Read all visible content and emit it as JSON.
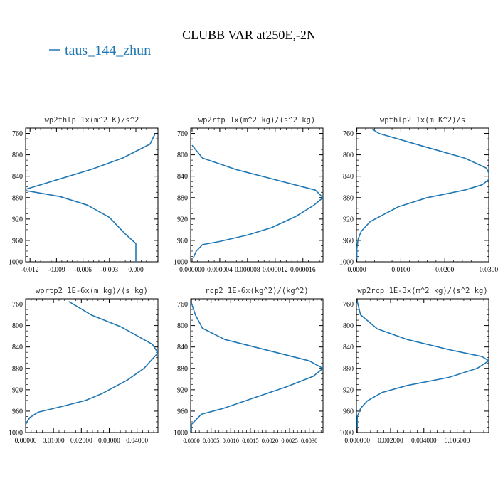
{
  "figure": {
    "title": "CLUBB VAR at250E,-2N",
    "legend": [
      {
        "label": "taus_144_zhun",
        "color": "#1f77b4"
      }
    ]
  },
  "chart_data": [
    {
      "type": "line",
      "title": "wp2thlp  1x(m^2 K)/s^2",
      "series_name": "taus_144_zhun",
      "xlim": [
        -0.0125,
        0.0025
      ],
      "ylim": [
        1000,
        750
      ],
      "xticks": [
        -0.012,
        -0.009,
        -0.006,
        -0.003,
        0.0
      ],
      "xtick_labels": [
        "-0.012",
        "-0.009",
        "-0.006",
        "-0.003",
        "0.000"
      ],
      "yticks": [
        760,
        800,
        840,
        880,
        920,
        960,
        1000
      ],
      "ytick_labels": [
        "760",
        "800",
        "840",
        "880",
        "920",
        "960",
        "1000"
      ],
      "x": [
        0.0022,
        0.0016,
        -0.0015,
        -0.005,
        -0.0088,
        -0.0128,
        -0.0086,
        -0.0055,
        -0.003,
        -0.0012,
        0.0,
        0.0,
        0.0
      ],
      "y": [
        760,
        780,
        806,
        827,
        846,
        866,
        878,
        894,
        917,
        948,
        966,
        985,
        1000
      ]
    },
    {
      "type": "line",
      "title": "wp2rtp  1x(m^2 kg)/(s^2 kg)",
      "series_name": "taus_144_zhun",
      "xlim": [
        -2e-07,
        1.89e-05
      ],
      "ylim": [
        1000,
        750
      ],
      "xticks": [
        0.0,
        4e-06,
        8e-06,
        1.2e-05,
        1.6e-05
      ],
      "xtick_labels": [
        "0.000000",
        "0.000004",
        "0.000008",
        "0.000012",
        "0.000016"
      ],
      "yticks": [
        760,
        800,
        840,
        880,
        920,
        960,
        1000
      ],
      "ytick_labels": [
        "760",
        "800",
        "840",
        "880",
        "920",
        "960",
        "1000"
      ],
      "x": [
        0.0,
        1.5e-06,
        6.5e-06,
        1.78e-05,
        1.89e-05,
        1.75e-05,
        1.5e-05,
        1.15e-05,
        8e-06,
        4e-06,
        1.5e-06,
        6e-07,
        2e-07
      ],
      "y": [
        782,
        806,
        828,
        866,
        880,
        895,
        915,
        936,
        950,
        962,
        968,
        980,
        992
      ]
    },
    {
      "type": "line",
      "title": "wpthlp2  1x(m K^2)/s",
      "series_name": "taus_144_zhun",
      "xlim": [
        -0.0001,
        0.03
      ],
      "ylim": [
        1000,
        750
      ],
      "xticks": [
        0.0,
        0.01,
        0.02,
        0.03
      ],
      "xtick_labels": [
        "0.0000",
        "0.0100",
        "0.0200",
        "0.0300"
      ],
      "yticks": [
        760,
        800,
        840,
        880,
        920,
        960,
        1000
      ],
      "ytick_labels": [
        "760",
        "800",
        "840",
        "880",
        "920",
        "960",
        "1000"
      ],
      "x": [
        0.0035,
        0.005,
        0.0155,
        0.0245,
        0.0295,
        0.0305,
        0.0285,
        0.0245,
        0.016,
        0.0095,
        0.006,
        0.003,
        0.001,
        0.0003,
        0.0,
        0.0
      ],
      "y": [
        752,
        760,
        785,
        806,
        825,
        843,
        856,
        866,
        880,
        897,
        912,
        925,
        943,
        957,
        975,
        995
      ]
    },
    {
      "type": "line",
      "title": "wprtp2  1E-6x(m kg)/(s kg)",
      "series_name": "taus_144_zhun",
      "xlim": [
        0.0,
        0.0475
      ],
      "ylim": [
        1000,
        750
      ],
      "xticks": [
        0.0,
        0.01,
        0.02,
        0.03,
        0.04
      ],
      "xtick_labels": [
        "0.00000",
        "0.01000",
        "0.02000",
        "0.03000",
        "0.04000"
      ],
      "yticks": [
        760,
        800,
        840,
        880,
        920,
        960,
        1000
      ],
      "ytick_labels": [
        "760",
        "800",
        "840",
        "880",
        "920",
        "960",
        "1000"
      ],
      "x": [
        0.0155,
        0.0235,
        0.0345,
        0.0455,
        0.0475,
        0.0425,
        0.0365,
        0.0275,
        0.0215,
        0.0125,
        0.0045,
        0.0015,
        0.0,
        0.0
      ],
      "y": [
        755,
        780,
        803,
        835,
        851,
        880,
        902,
        927,
        940,
        952,
        962,
        972,
        985,
        1000
      ]
    },
    {
      "type": "line",
      "title": "rcp2  1E-6x(kg^2)/(kg^2)",
      "series_name": "taus_144_zhun",
      "xlim": [
        -2e-05,
        0.00335
      ],
      "ylim": [
        1000,
        750
      ],
      "xticks": [
        0.0,
        0.0005,
        0.001,
        0.0015,
        0.002,
        0.0025,
        0.003
      ],
      "xtick_labels": [
        "0.0000",
        "0.0005",
        "0.0010",
        "0.0015",
        "0.0020",
        "0.0025",
        "0.0030"
      ],
      "yticks": [
        760,
        800,
        840,
        880,
        920,
        960,
        1000
      ],
      "ytick_labels": [
        "760",
        "800",
        "840",
        "880",
        "920",
        "960",
        "1000"
      ],
      "x": [
        0.0,
        0.0001,
        0.00028,
        0.00085,
        0.003,
        0.00335,
        0.0031,
        0.0024,
        0.0016,
        0.0008,
        0.00025,
        0.0,
        0.0
      ],
      "y": [
        758,
        780,
        805,
        826,
        866,
        880,
        895,
        915,
        935,
        955,
        966,
        985,
        998
      ]
    },
    {
      "type": "line",
      "title": "wp2rcp  1E-3x(m^2 kg)/(s^2 kg)",
      "series_name": "taus_144_zhun",
      "xlim": [
        -5e-05,
        0.0079
      ],
      "ylim": [
        1000,
        750
      ],
      "xticks": [
        0.0,
        0.002,
        0.004,
        0.006
      ],
      "xtick_labels": [
        "0.000000",
        "0.002000",
        "0.004000",
        "0.006000"
      ],
      "yticks": [
        760,
        800,
        840,
        880,
        920,
        960,
        1000
      ],
      "ytick_labels": [
        "760",
        "800",
        "840",
        "880",
        "920",
        "960",
        "1000"
      ],
      "x": [
        0.0,
        0.0002,
        0.0012,
        0.003,
        0.0055,
        0.0075,
        0.0079,
        0.0072,
        0.0055,
        0.003,
        0.0015,
        0.0006,
        0.0002,
        0.0,
        0.0
      ],
      "y": [
        755,
        780,
        806,
        826,
        845,
        858,
        866,
        880,
        897,
        912,
        925,
        941,
        955,
        970,
        992
      ]
    }
  ]
}
